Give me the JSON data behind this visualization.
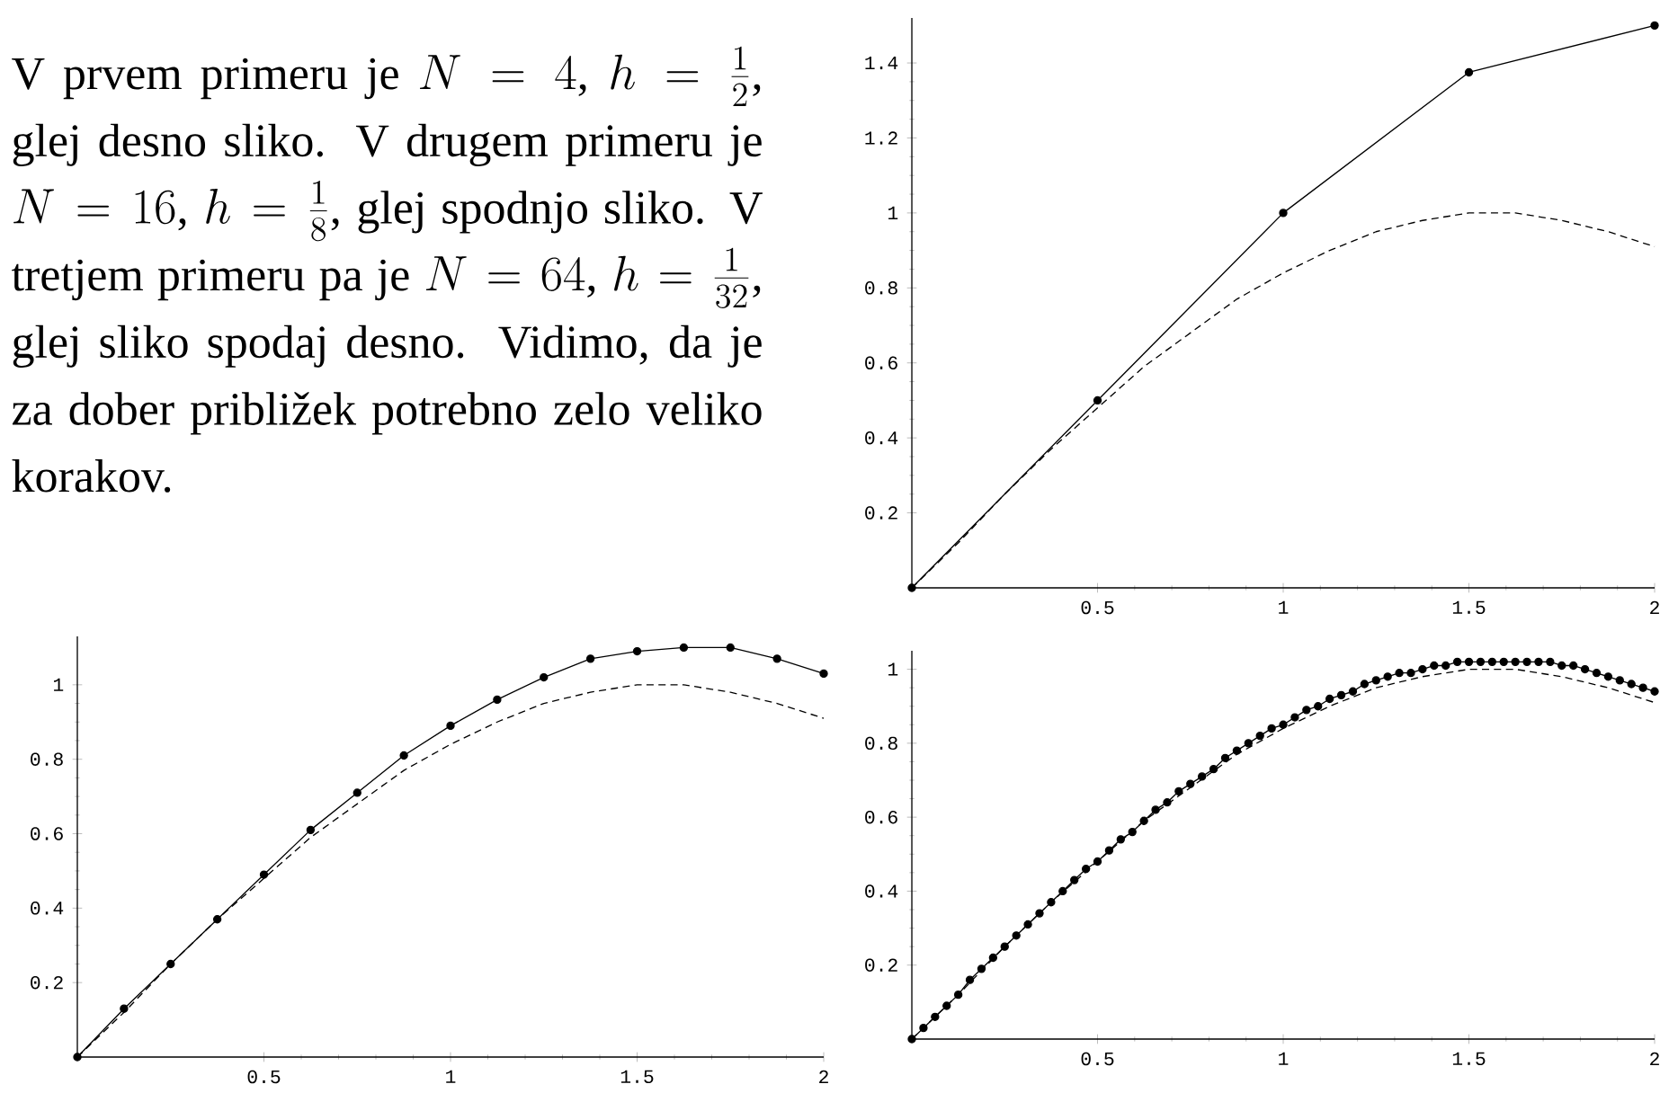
{
  "chart_data": [
    {
      "type": "other",
      "annotations": [
        "V prvem primeru je ",
        "N = 4",
        ", ",
        "h = \\frac{1}{2}",
        ", glej desno sliko. V drugem primeru je ",
        "N = 16",
        ", ",
        "h = \\frac{1}{8}",
        ", glej spodnjo sliko. V tretjem primeru pa je ",
        "N = 64",
        ", ",
        "h = \\frac{1}{32}",
        ", glej sliko spodaj desno. Vidimo, da je za dober približek potrebno zelo veliko korakov."
      ]
    },
    {
      "type": "line",
      "xlim": [
        0,
        2
      ],
      "ylim": [
        0,
        1.52
      ],
      "xticks": [
        0.5,
        1,
        1.5,
        2
      ],
      "yticks": [
        0.2,
        0.4,
        0.6,
        0.8,
        1,
        1.2,
        1.4
      ],
      "series": [
        {
          "color": "#000000",
          "marker": "circle",
          "line_style": "solid",
          "x": [
            0,
            0.5,
            1,
            1.5,
            2
          ],
          "values": [
            0,
            0.5,
            1,
            1.375,
            1.5
          ]
        },
        {
          "color": "#000000",
          "marker": "none",
          "line_style": "dashed",
          "x": [
            0,
            0.125,
            0.25,
            0.375,
            0.5,
            0.625,
            0.75,
            0.875,
            1,
            1.125,
            1.25,
            1.375,
            1.5,
            1.625,
            1.75,
            1.875,
            2
          ],
          "values": [
            0,
            0.12,
            0.25,
            0.37,
            0.48,
            0.59,
            0.68,
            0.77,
            0.84,
            0.9,
            0.95,
            0.98,
            1.0,
            1.0,
            0.98,
            0.95,
            0.91
          ]
        }
      ]
    },
    {
      "type": "line",
      "xlim": [
        0,
        2
      ],
      "ylim": [
        0,
        1.13
      ],
      "xticks": [
        0.5,
        1,
        1.5,
        2
      ],
      "yticks": [
        0.2,
        0.4,
        0.6,
        0.8,
        1
      ],
      "series": [
        {
          "color": "#000000",
          "marker": "circle",
          "line_style": "solid",
          "x": [
            0,
            0.125,
            0.25,
            0.375,
            0.5,
            0.625,
            0.75,
            0.875,
            1,
            1.125,
            1.25,
            1.375,
            1.5,
            1.625,
            1.75,
            1.875,
            2
          ],
          "values": [
            0,
            0.13,
            0.25,
            0.37,
            0.49,
            0.61,
            0.71,
            0.81,
            0.89,
            0.96,
            1.02,
            1.07,
            1.09,
            1.1,
            1.1,
            1.07,
            1.03
          ]
        },
        {
          "color": "#000000",
          "marker": "none",
          "line_style": "dashed",
          "x": [
            0,
            0.125,
            0.25,
            0.375,
            0.5,
            0.625,
            0.75,
            0.875,
            1,
            1.125,
            1.25,
            1.375,
            1.5,
            1.625,
            1.75,
            1.875,
            2
          ],
          "values": [
            0,
            0.12,
            0.25,
            0.37,
            0.48,
            0.59,
            0.68,
            0.77,
            0.84,
            0.9,
            0.95,
            0.98,
            1.0,
            1.0,
            0.98,
            0.95,
            0.91
          ]
        }
      ]
    },
    {
      "type": "line",
      "xlim": [
        0,
        2
      ],
      "ylim": [
        0,
        1.05
      ],
      "xticks": [
        0.5,
        1,
        1.5,
        2
      ],
      "yticks": [
        0.2,
        0.4,
        0.6,
        0.8,
        1
      ],
      "series": [
        {
          "color": "#000000",
          "marker": "circle",
          "line_style": "solid",
          "x": [
            0,
            0.03125,
            0.0625,
            0.09375,
            0.125,
            0.15625,
            0.1875,
            0.21875,
            0.25,
            0.28125,
            0.3125,
            0.34375,
            0.375,
            0.40625,
            0.4375,
            0.46875,
            0.5,
            0.53125,
            0.5625,
            0.59375,
            0.625,
            0.65625,
            0.6875,
            0.71875,
            0.75,
            0.78125,
            0.8125,
            0.84375,
            0.875,
            0.90625,
            0.9375,
            0.96875,
            1,
            1.03125,
            1.0625,
            1.09375,
            1.125,
            1.15625,
            1.1875,
            1.21875,
            1.25,
            1.28125,
            1.3125,
            1.34375,
            1.375,
            1.40625,
            1.4375,
            1.46875,
            1.5,
            1.53125,
            1.5625,
            1.59375,
            1.625,
            1.65625,
            1.6875,
            1.71875,
            1.75,
            1.78125,
            1.8125,
            1.84375,
            1.875,
            1.90625,
            1.9375,
            1.96875,
            2
          ],
          "values": [
            0,
            0.03,
            0.06,
            0.09,
            0.12,
            0.16,
            0.19,
            0.22,
            0.25,
            0.28,
            0.31,
            0.34,
            0.37,
            0.4,
            0.43,
            0.46,
            0.48,
            0.51,
            0.54,
            0.56,
            0.59,
            0.62,
            0.64,
            0.67,
            0.69,
            0.71,
            0.73,
            0.76,
            0.78,
            0.8,
            0.82,
            0.84,
            0.85,
            0.87,
            0.89,
            0.9,
            0.92,
            0.93,
            0.94,
            0.96,
            0.97,
            0.98,
            0.99,
            0.99,
            1.0,
            1.01,
            1.01,
            1.02,
            1.02,
            1.02,
            1.02,
            1.02,
            1.02,
            1.02,
            1.02,
            1.02,
            1.01,
            1.01,
            1.0,
            0.99,
            0.98,
            0.97,
            0.96,
            0.95,
            0.94
          ]
        },
        {
          "color": "#000000",
          "marker": "none",
          "line_style": "dashed",
          "x": [
            0,
            0.125,
            0.25,
            0.375,
            0.5,
            0.625,
            0.75,
            0.875,
            1,
            1.125,
            1.25,
            1.375,
            1.5,
            1.625,
            1.75,
            1.875,
            2
          ],
          "values": [
            0,
            0.12,
            0.25,
            0.37,
            0.48,
            0.59,
            0.68,
            0.77,
            0.84,
            0.9,
            0.95,
            0.98,
            1.0,
            1.0,
            0.98,
            0.95,
            0.91
          ]
        }
      ]
    }
  ]
}
